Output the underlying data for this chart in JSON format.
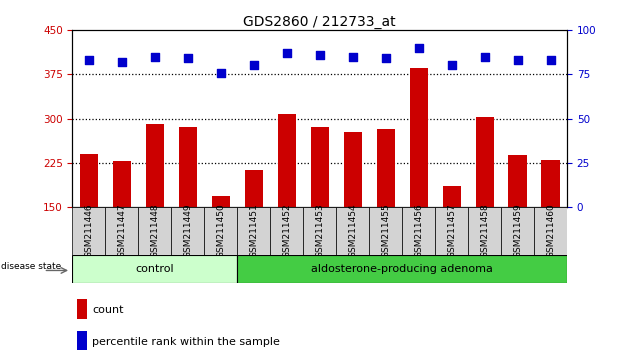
{
  "title": "GDS2860 / 212733_at",
  "samples": [
    "GSM211446",
    "GSM211447",
    "GSM211448",
    "GSM211449",
    "GSM211450",
    "GSM211451",
    "GSM211452",
    "GSM211453",
    "GSM211454",
    "GSM211455",
    "GSM211456",
    "GSM211457",
    "GSM211458",
    "GSM211459",
    "GSM211460"
  ],
  "bar_values": [
    240,
    228,
    290,
    285,
    168,
    213,
    307,
    285,
    278,
    282,
    385,
    185,
    302,
    238,
    230
  ],
  "dot_values": [
    83,
    82,
    85,
    84,
    76,
    80,
    87,
    86,
    85,
    84,
    90,
    80,
    85,
    83,
    83
  ],
  "bar_color": "#cc0000",
  "dot_color": "#0000cc",
  "ylim_left": [
    150,
    450
  ],
  "ylim_right": [
    0,
    100
  ],
  "yticks_left": [
    150,
    225,
    300,
    375,
    450
  ],
  "yticks_right": [
    0,
    25,
    50,
    75,
    100
  ],
  "hlines": [
    225,
    300,
    375
  ],
  "control_count": 5,
  "control_label": "control",
  "adenoma_label": "aldosterone-producing adenoma",
  "disease_state_label": "disease state",
  "legend_count": "count",
  "legend_percentile": "percentile rank within the sample",
  "bg_color": "#ffffff",
  "plot_bg_color": "#ffffff",
  "tick_label_color_left": "#cc0000",
  "tick_label_color_right": "#0000cc",
  "control_bg": "#ccffcc",
  "adenoma_bg": "#44cc44",
  "bar_width": 0.55,
  "dot_size": 35,
  "title_fontsize": 10,
  "tick_fontsize": 7.5,
  "sample_fontsize": 6.5,
  "legend_fontsize": 8
}
